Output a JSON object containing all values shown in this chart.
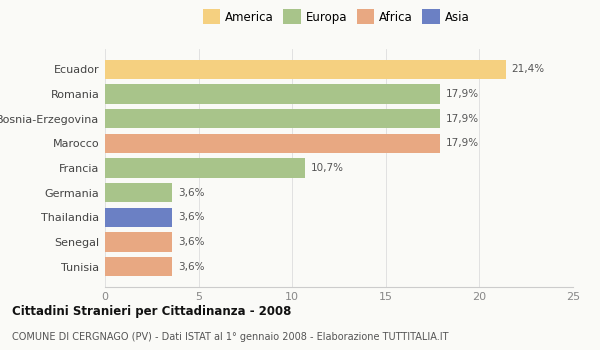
{
  "categories": [
    "Tunisia",
    "Senegal",
    "Thailandia",
    "Germania",
    "Francia",
    "Marocco",
    "Bosnia-Erzegovina",
    "Romania",
    "Ecuador"
  ],
  "values": [
    3.6,
    3.6,
    3.6,
    3.6,
    10.7,
    17.9,
    17.9,
    17.9,
    21.4
  ],
  "colors": [
    "#E8A882",
    "#E8A882",
    "#6B80C4",
    "#A8C48A",
    "#A8C48A",
    "#E8A882",
    "#A8C48A",
    "#A8C48A",
    "#F5D080"
  ],
  "labels": [
    "3,6%",
    "3,6%",
    "3,6%",
    "3,6%",
    "10,7%",
    "17,9%",
    "17,9%",
    "17,9%",
    "21,4%"
  ],
  "legend_items": [
    {
      "label": "America",
      "color": "#F5D080"
    },
    {
      "label": "Europa",
      "color": "#A8C48A"
    },
    {
      "label": "Africa",
      "color": "#E8A882"
    },
    {
      "label": "Asia",
      "color": "#6B80C4"
    }
  ],
  "xlim": [
    0,
    25
  ],
  "xticks": [
    0,
    5,
    10,
    15,
    20,
    25
  ],
  "title": "Cittadini Stranieri per Cittadinanza - 2008",
  "subtitle": "COMUNE DI CERGNAGO (PV) - Dati ISTAT al 1° gennaio 2008 - Elaborazione TUTTITALIA.IT",
  "bg_color": "#FAFAF7",
  "bar_height": 0.78
}
